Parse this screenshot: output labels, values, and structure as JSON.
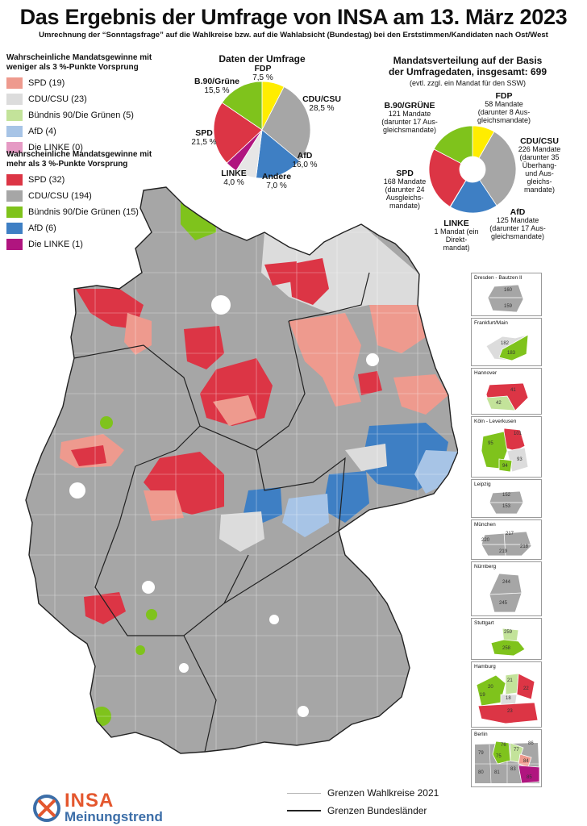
{
  "title": "Das Ergebnis der Umfrage von INSA am 13. März 2023",
  "subtitle": "Umrechnung der “Sonntagsfrage” auf die Wahlkreise bzw. auf die Wahlabsicht (Bundestag) bei den Erststimmen/Kandidaten nach Ost/West",
  "legend_weak": {
    "heading": "Wahrscheinliche Mandatsgewinne mit weniger als 3 %-Punkte Vorsprung",
    "items": [
      {
        "label": "SPD (19)",
        "color": "#ee9a8e"
      },
      {
        "label": "CDU/CSU (23)",
        "color": "#dcdcdc"
      },
      {
        "label": "Bündnis 90/Die Grünen (5)",
        "color": "#c3e39a"
      },
      {
        "label": "AfD (4)",
        "color": "#a7c4e6"
      },
      {
        "label": "Die LINKE (0)",
        "color": "#e59ac4"
      }
    ]
  },
  "legend_strong": {
    "heading": "Wahrscheinliche Mandatsgewinne mit mehr als 3 %-Punkte Vorsprung",
    "items": [
      {
        "label": "SPD (32)",
        "color": "#dc3545"
      },
      {
        "label": "CDU/CSU (194)",
        "color": "#a6a6a6"
      },
      {
        "label": "Bündnis 90/Die Grünen (15)",
        "color": "#7fc31c"
      },
      {
        "label": "AfD (6)",
        "color": "#3e7fc4"
      },
      {
        "label": "Die LINKE (1)",
        "color": "#b0157f"
      }
    ]
  },
  "poll_pie": {
    "title": "Daten der Umfrage",
    "slices": [
      {
        "party": "FDP",
        "value": 7.5,
        "label": "FDP",
        "value_text": "7,5 %",
        "color": "#ffed00"
      },
      {
        "party": "CDU/CSU",
        "value": 28.5,
        "label": "CDU/CSU",
        "value_text": "28,5 %",
        "color": "#a6a6a6"
      },
      {
        "party": "AfD",
        "value": 16.0,
        "label": "AfD",
        "value_text": "16,0 %",
        "color": "#3e7fc4"
      },
      {
        "party": "Andere",
        "value": 7.0,
        "label": "Andere",
        "value_text": "7,0 %",
        "color": "#e6e6e6"
      },
      {
        "party": "LINKE",
        "value": 4.0,
        "label": "LINKE",
        "value_text": "4,0 %",
        "color": "#b0157f"
      },
      {
        "party": "SPD",
        "value": 21.5,
        "label": "SPD",
        "value_text": "21,5 %",
        "color": "#dc3545"
      },
      {
        "party": "B.90/Grüne",
        "value": 15.5,
        "label": "B.90/Grüne",
        "value_text": "15,5 %",
        "color": "#7fc31c"
      }
    ]
  },
  "seat_pie": {
    "title_line1": "Mandatsverteilung auf der Basis",
    "title_line2": "der Umfragedaten, insgesamt: 699",
    "note": "(evtl. zzgl. ein Mandat für den SSW)",
    "slices": [
      {
        "party": "FDP",
        "value": 58,
        "label": "FDP",
        "detail": "58 Mandate (darunter 8 Aus- gleichsmandate)",
        "color": "#ffed00"
      },
      {
        "party": "CDU/CSU",
        "value": 226,
        "label": "CDU/CSU",
        "detail": "226 Mandate (darunter 35 Überhang- und Aus- gleichs- mandate)",
        "color": "#a6a6a6"
      },
      {
        "party": "AfD",
        "value": 125,
        "label": "AfD",
        "detail": "125 Mandate (darunter 17 Aus- gleichsmandate)",
        "color": "#3e7fc4"
      },
      {
        "party": "LINKE",
        "value": 1,
        "label": "LINKE",
        "detail": "1 Mandat (ein Direkt- mandat)",
        "color": "#b0157f"
      },
      {
        "party": "SPD",
        "value": 168,
        "label": "SPD",
        "detail": "168 Mandate (darunter 24 Ausgleichs- mandate)",
        "color": "#dc3545"
      },
      {
        "party": "B.90/GRÜNE",
        "value": 121,
        "label": "B.90/GRÜNE",
        "detail": "121 Mandate (darunter 17 Aus- gleichsmandate)",
        "color": "#7fc31c"
      }
    ]
  },
  "insets": [
    {
      "name": "Dresden - Bautzen II",
      "numbers": [
        "160",
        "159"
      ]
    },
    {
      "name": "Frankfurt/Main",
      "numbers": [
        "182",
        "183"
      ]
    },
    {
      "name": "Hannover",
      "numbers": [
        "41",
        "42"
      ]
    },
    {
      "name": "Köln - Leverkusen",
      "numbers": [
        "101",
        "95",
        "94",
        "93"
      ]
    },
    {
      "name": "Leipzig",
      "numbers": [
        "152",
        "153"
      ]
    },
    {
      "name": "München",
      "numbers": [
        "217",
        "220",
        "219",
        "218"
      ]
    },
    {
      "name": "Nürnberg",
      "numbers": [
        "244",
        "245"
      ]
    },
    {
      "name": "Stuttgart",
      "numbers": [
        "259",
        "258"
      ]
    },
    {
      "name": "Hamburg",
      "numbers": [
        "21",
        "20",
        "22",
        "19",
        "18",
        "23"
      ]
    },
    {
      "name": "Berlin",
      "numbers": [
        "76",
        "75",
        "77",
        "79",
        "80",
        "81",
        "83",
        "84",
        "85",
        "86"
      ]
    }
  ],
  "map_legend": {
    "constituency_border": "Grenzen Wahlkreise 2021",
    "state_border": "Grenzen Bundesländer"
  },
  "logo": {
    "brand": "INSA",
    "tagline": "Meinungstrend"
  },
  "colors": {
    "spd_strong": "#dc3545",
    "spd_weak": "#ee9a8e",
    "cdu_strong": "#a6a6a6",
    "cdu_weak": "#dcdcdc",
    "green_strong": "#7fc31c",
    "green_weak": "#c3e39a",
    "afd_strong": "#3e7fc4",
    "afd_weak": "#a7c4e6",
    "linke_strong": "#b0157f",
    "linke_weak": "#e59ac4"
  }
}
